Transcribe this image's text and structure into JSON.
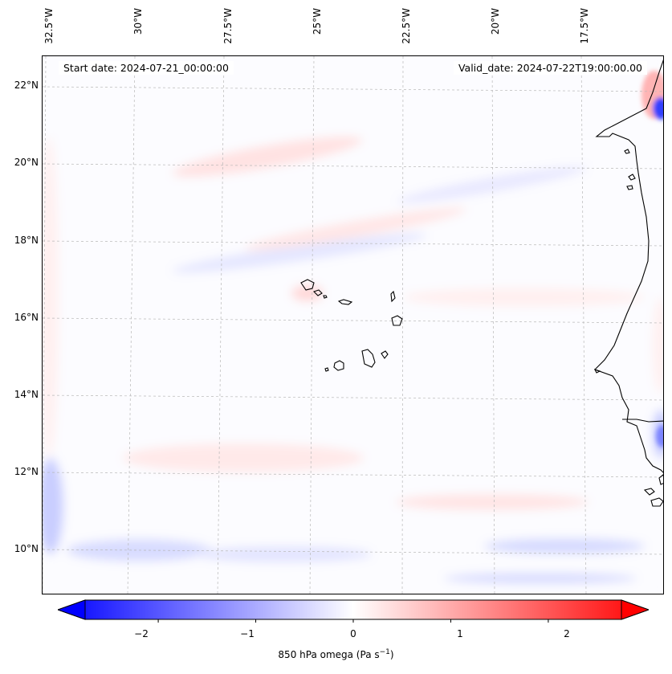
{
  "map": {
    "start_date_text": "Start date: 2024-07-21_00:00:00",
    "valid_date_text": "Valid_date: 2024-07-22T19:00:00.00",
    "longitude_labels": [
      "32.5°W",
      "30°W",
      "27.5°W",
      "25°W",
      "22.5°W",
      "20°W",
      "17.5°W"
    ],
    "latitude_labels": [
      "22°N",
      "20°N",
      "18°N",
      "16°N",
      "14°N",
      "12°N",
      "10°N"
    ],
    "field": "850 hPa omega",
    "features": [
      "Cape Verde islands",
      "West African coastline (Mauritania, Senegal, Gambia, Guinea-Bissau)"
    ],
    "colors": {
      "negative": "#0000ff",
      "zero": "#ffffff",
      "positive": "#ff0000",
      "coast": "#000000",
      "grid": "#b0b0b0"
    }
  },
  "colorbar": {
    "label_main": "850 hPa omega (Pa s",
    "label_exp": "−1",
    "label_close": ")",
    "min": -2.75,
    "max": 2.75,
    "extend": "both",
    "tick_labels": [
      "−2",
      "−1",
      "0",
      "1",
      "2"
    ],
    "tick_values": [
      -2,
      -1,
      0,
      1,
      2
    ]
  }
}
